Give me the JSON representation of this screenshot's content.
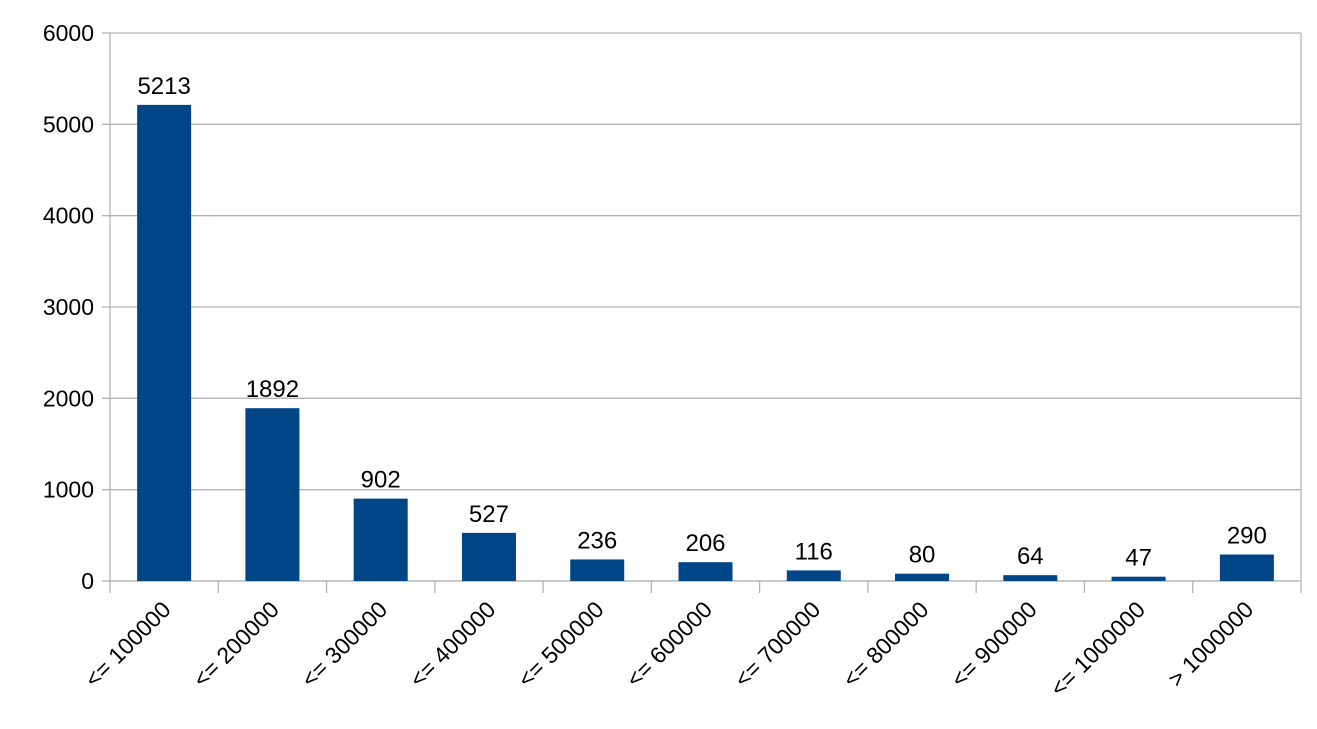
{
  "chart_data": {
    "type": "bar",
    "title": "",
    "xlabel": "",
    "ylabel": "",
    "categories": [
      "<= 100000",
      "<= 200000",
      "<= 300000",
      "<= 400000",
      "<= 500000",
      "<= 600000",
      "<= 700000",
      "<= 800000",
      "<= 900000",
      "<= 1000000",
      "> 1000000"
    ],
    "values": [
      5213,
      1892,
      902,
      527,
      236,
      206,
      116,
      80,
      64,
      47,
      290
    ],
    "data_labels": [
      "5213",
      "1892",
      "902",
      "527",
      "236",
      "206",
      "116",
      "80",
      "64",
      "47",
      "290"
    ],
    "ylim": [
      0,
      6000
    ],
    "yticks": [
      0,
      1000,
      2000,
      3000,
      4000,
      5000,
      6000
    ],
    "ytick_labels": [
      "0",
      "1000",
      "2000",
      "3000",
      "4000",
      "5000",
      "6000"
    ],
    "grid": true,
    "legend": "none",
    "bar_color": "#004586",
    "grid_color": "#b3b3b3"
  }
}
